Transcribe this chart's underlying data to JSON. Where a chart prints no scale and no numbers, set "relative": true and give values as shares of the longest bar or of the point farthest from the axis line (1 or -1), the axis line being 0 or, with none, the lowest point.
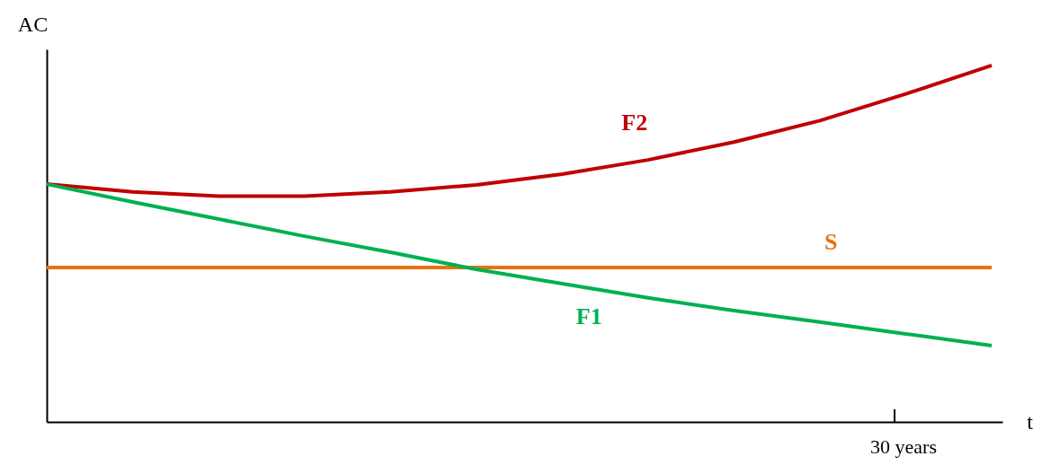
{
  "chart_data": {
    "type": "line",
    "relative": true,
    "ylabel": "AC",
    "xlabel": "t",
    "categories": [
      null,
      null,
      null,
      null,
      null,
      null,
      null,
      null,
      null,
      null,
      null,
      null
    ],
    "annotations": [
      "30 years"
    ],
    "legend": false,
    "series": [
      {
        "name": "F2",
        "color": "#c00000",
        "values": [
          0.667,
          0.645,
          0.633,
          0.633,
          0.645,
          0.665,
          0.695,
          0.735,
          0.785,
          0.845,
          0.92,
          1.0
        ]
      },
      {
        "name": "S",
        "color": "#e8720c",
        "values": [
          0.433,
          0.433,
          0.433,
          0.433,
          0.433,
          0.433,
          0.433,
          0.433,
          0.433,
          0.433,
          0.433,
          0.433
        ]
      },
      {
        "name": "F1",
        "color": "#00b050",
        "values": [
          0.667,
          0.617,
          0.569,
          0.521,
          0.476,
          0.428,
          0.388,
          0.348,
          0.312,
          0.28,
          0.247,
          0.214
        ]
      }
    ]
  }
}
